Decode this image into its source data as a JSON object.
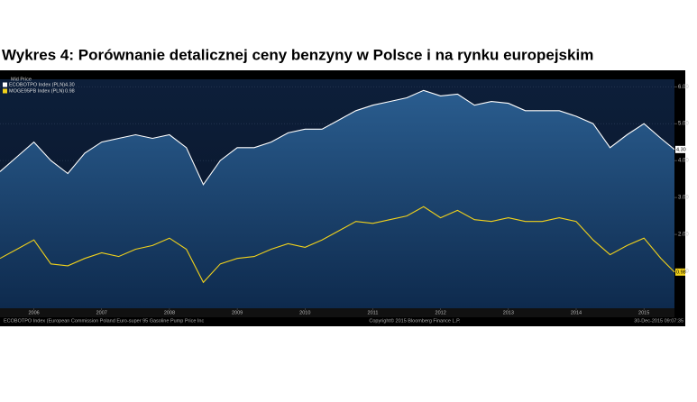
{
  "chart_data": {
    "type": "line",
    "title": "Wykres 4: Porównanie detalicznej ceny benzyny w Polsce i na rynku europejskim",
    "legend_title": "Mid Price",
    "x": [
      2006.0,
      2006.25,
      2006.5,
      2006.75,
      2007.0,
      2007.25,
      2007.5,
      2007.75,
      2008.0,
      2008.25,
      2008.5,
      2008.75,
      2009.0,
      2009.25,
      2009.5,
      2009.75,
      2010.0,
      2010.25,
      2010.5,
      2010.75,
      2011.0,
      2011.25,
      2011.5,
      2011.75,
      2012.0,
      2012.25,
      2012.5,
      2012.75,
      2013.0,
      2013.25,
      2013.5,
      2013.75,
      2014.0,
      2014.25,
      2014.5,
      2014.75,
      2015.0,
      2015.25,
      2015.5,
      2015.75,
      2015.95
    ],
    "series": [
      {
        "name": "ECOBOTPO Index (PLN)",
        "last_label": "4.30",
        "color": "#ffffff",
        "values": [
          3.7,
          4.1,
          4.5,
          4.0,
          3.65,
          4.2,
          4.5,
          4.6,
          4.7,
          4.6,
          4.7,
          4.35,
          3.35,
          4.0,
          4.35,
          4.35,
          4.5,
          4.75,
          4.85,
          4.85,
          5.1,
          5.35,
          5.5,
          5.6,
          5.7,
          5.9,
          5.75,
          5.8,
          5.5,
          5.6,
          5.55,
          5.35,
          5.35,
          5.35,
          5.2,
          5.0,
          4.35,
          4.7,
          5.0,
          4.6,
          4.3
        ]
      },
      {
        "name": "MOGE95PB Index (PLN)",
        "last_label": "0.98",
        "color": "#f2d21b",
        "values": [
          1.35,
          1.6,
          1.85,
          1.2,
          1.15,
          1.35,
          1.5,
          1.4,
          1.6,
          1.7,
          1.9,
          1.6,
          0.7,
          1.2,
          1.35,
          1.4,
          1.6,
          1.75,
          1.65,
          1.85,
          2.1,
          2.35,
          2.3,
          2.4,
          2.5,
          2.75,
          2.45,
          2.65,
          2.4,
          2.35,
          2.45,
          2.35,
          2.35,
          2.45,
          2.35,
          1.85,
          1.45,
          1.7,
          1.9,
          1.35,
          0.98
        ]
      }
    ],
    "xlim": [
      2006.0,
      2015.95
    ],
    "xticks": [
      {
        "value": 2006.5,
        "label": "2006"
      },
      {
        "value": 2007.5,
        "label": "2007"
      },
      {
        "value": 2008.5,
        "label": "2008"
      },
      {
        "value": 2009.5,
        "label": "2009"
      },
      {
        "value": 2010.5,
        "label": "2010"
      },
      {
        "value": 2011.5,
        "label": "2011"
      },
      {
        "value": 2012.5,
        "label": "2012"
      },
      {
        "value": 2013.5,
        "label": "2013"
      },
      {
        "value": 2014.5,
        "label": "2014"
      },
      {
        "value": 2015.5,
        "label": "2015"
      }
    ],
    "ylim": [
      0,
      6.2
    ],
    "yticks": [
      {
        "value": 1,
        "label": "1.00"
      },
      {
        "value": 2,
        "label": "2.00"
      },
      {
        "value": 3,
        "label": "3.00"
      },
      {
        "value": 4,
        "label": "4.00"
      },
      {
        "value": 5,
        "label": "5.00"
      },
      {
        "value": 6,
        "label": "6.00"
      }
    ],
    "grid": true,
    "footer_left": "ECOBOTPO Index (European Commission Poland Euro-super 95 Gasoline Pump Price Inc",
    "footer_center": "Copyright© 2015 Bloomberg Finance L.P.",
    "footer_right": "30-Dec-2015 09:07:35"
  }
}
